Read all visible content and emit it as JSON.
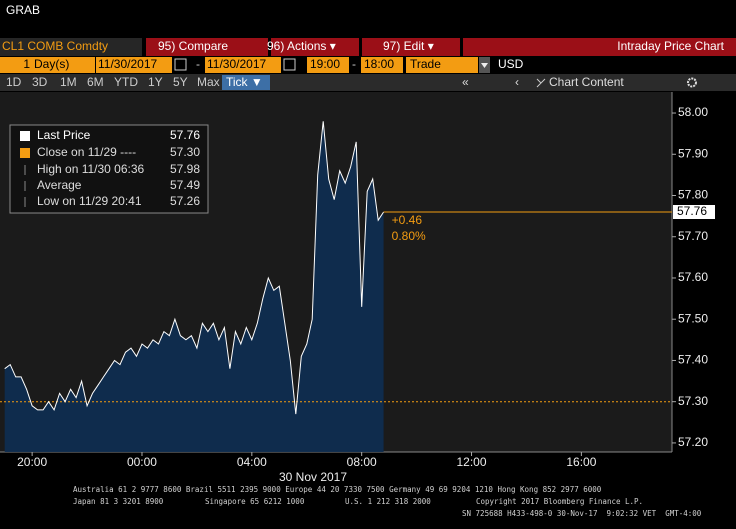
{
  "terminal": {
    "title": "GRAB",
    "security": "CL1 COMB Comdty",
    "buttons": [
      "95) Compare",
      "96) Actions ▾",
      "97) Edit ▾"
    ],
    "panel_title": "Intraday Price Chart",
    "range": {
      "count": "1",
      "unit": "Day(s)",
      "start_date": "11/30/2017",
      "sep1": "-",
      "end_date": "11/30/2017",
      "start_time": "19:00",
      "sep2": "-",
      "end_time": "18:00",
      "field": "Trade",
      "currency": "USD"
    },
    "tabs": [
      "1D",
      "3D",
      "1M",
      "6M",
      "YTD",
      "1Y",
      "5Y",
      "Max",
      "Tick ▼"
    ],
    "nav": [
      "«",
      "‹"
    ],
    "content_button": "Chart Content",
    "footer": [
      "Australia 61 2 9777 8600 Brazil 5511 2395 9000 Europe 44 20 7330 7500 Germany 49 69 9204 1210 Hong Kong 852 2977 6000",
      "Japan 81 3 3201 8900",
      "Singapore 65 6212 1000",
      "U.S. 1 212 318 2000",
      "Copyright 2017 Bloomberg Finance L.P.",
      "SN 725688 H433-498-0 30-Nov-17  9:02:32 VET  GMT-4:00"
    ]
  },
  "chart_data": {
    "type": "line",
    "area": true,
    "date_label": "30 Nov 2017",
    "x": [
      19,
      19.2,
      19.4,
      19.6,
      19.8,
      20,
      20.2,
      20.4,
      20.6,
      20.8,
      21,
      21.2,
      21.4,
      21.6,
      21.8,
      22,
      22.2,
      22.4,
      22.6,
      22.8,
      23,
      23.2,
      23.4,
      23.6,
      23.8,
      24,
      24.2,
      24.4,
      24.6,
      24.8,
      25,
      25.2,
      25.4,
      25.6,
      25.8,
      26,
      26.2,
      26.4,
      26.6,
      26.8,
      27,
      27.2,
      27.4,
      27.6,
      27.8,
      28,
      28.2,
      28.4,
      28.6,
      28.8,
      29,
      29.2,
      29.4,
      29.6,
      29.8,
      30,
      30.2,
      30.4,
      30.6,
      30.8,
      31,
      31.2,
      31.4,
      31.6,
      31.8,
      32,
      32.2,
      32.4,
      32.6,
      32.8
    ],
    "series": [
      {
        "name": "Last Price",
        "color": "#ffffff",
        "area_color": "#0f2d50",
        "values": [
          57.38,
          57.39,
          57.36,
          57.36,
          57.33,
          57.29,
          57.28,
          57.28,
          57.3,
          57.28,
          57.32,
          57.3,
          57.33,
          57.31,
          57.35,
          57.29,
          57.32,
          57.34,
          57.36,
          57.38,
          57.4,
          57.39,
          57.42,
          57.43,
          57.41,
          57.44,
          57.43,
          57.45,
          57.44,
          57.47,
          57.46,
          57.5,
          57.46,
          57.45,
          57.46,
          57.43,
          57.49,
          57.47,
          57.49,
          57.45,
          57.48,
          57.38,
          57.47,
          57.44,
          57.48,
          57.45,
          57.49,
          57.55,
          57.6,
          57.57,
          57.58,
          57.49,
          57.4,
          57.27,
          57.41,
          57.44,
          57.5,
          57.85,
          57.98,
          57.84,
          57.79,
          57.86,
          57.83,
          57.87,
          57.93,
          57.53,
          57.81,
          57.84,
          57.74,
          57.76
        ],
        "last_value": 57.76,
        "last_value_label": "57.76",
        "line_color": "#f39c12"
      }
    ],
    "stats": {
      "labels": [
        "Close on 11/29 ----",
        "High on 11/30 06:36",
        "Average",
        "Low on 11/29 20:41"
      ],
      "values": [
        57.3,
        57.98,
        57.49,
        57.26
      ],
      "value_labels": [
        "57.30",
        "57.98",
        "57.49",
        "57.26"
      ],
      "close_color": "#f39c12"
    },
    "annotations": [
      "+0.46",
      "0.80%"
    ],
    "xlim": [
      18.83,
      43.3
    ],
    "xticks": [
      {
        "value": 20,
        "label": "20:00"
      },
      {
        "value": 24,
        "label": "00:00"
      },
      {
        "value": 28,
        "label": "04:00"
      },
      {
        "value": 32,
        "label": "08:00"
      },
      {
        "value": 36,
        "label": "12:00"
      },
      {
        "value": 40,
        "label": "16:00"
      }
    ],
    "ylim": [
      57.178,
      58.051
    ],
    "yticks": [
      {
        "value": 57.2,
        "label": "57.20"
      },
      {
        "value": 57.3,
        "label": "57.30"
      },
      {
        "value": 57.4,
        "label": "57.40"
      },
      {
        "value": 57.5,
        "label": "57.50"
      },
      {
        "value": 57.6,
        "label": "57.60"
      },
      {
        "value": 57.7,
        "label": "57.70"
      },
      {
        "value": 57.8,
        "label": "57.80"
      },
      {
        "value": 57.9,
        "label": "57.90"
      },
      {
        "value": 58,
        "label": "58.00"
      }
    ],
    "grid": false
  }
}
